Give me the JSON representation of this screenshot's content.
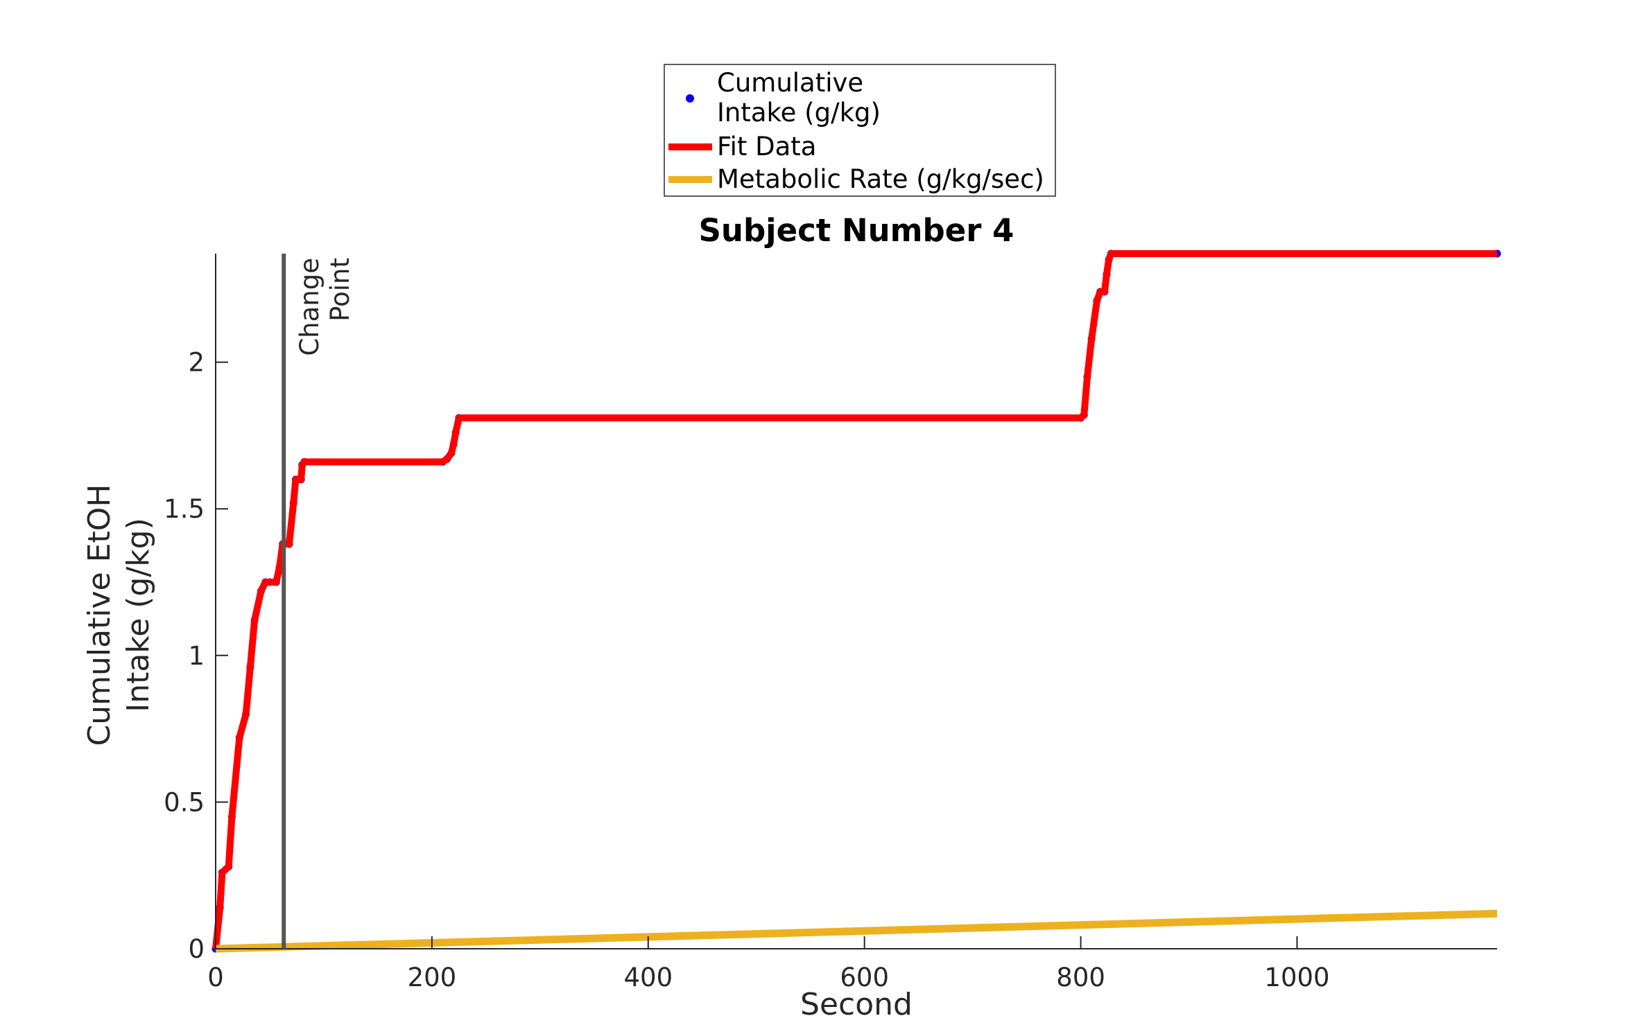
{
  "chart_data": {
    "type": "line",
    "title": "Subject Number 4",
    "xlabel": "Second",
    "ylabel_lines": [
      "Cumulative EtOH",
      "Intake (g/kg)"
    ],
    "xlim": [
      0,
      1185
    ],
    "ylim": [
      0,
      2.37
    ],
    "xticks": [
      0,
      200,
      400,
      600,
      800,
      1000
    ],
    "xtick_labels": [
      "0",
      "200",
      "400",
      "600",
      "800",
      "1000"
    ],
    "yticks": [
      0,
      0.5,
      1,
      1.5,
      2
    ],
    "ytick_labels": [
      "0",
      "0.5",
      "1",
      "1.5",
      "2"
    ],
    "grid": false,
    "legend_position": "top-center",
    "legend": [
      {
        "label_lines": [
          "Cumulative",
          "Intake (g/kg)"
        ],
        "marker": "dot",
        "color": "#0000ff"
      },
      {
        "label_lines": [
          "Fit Data"
        ],
        "marker": "line",
        "color": "#ff0000"
      },
      {
        "label_lines": [
          "Metabolic Rate (g/kg/sec)"
        ],
        "marker": "line",
        "color": "#edb120"
      }
    ],
    "change_point": {
      "x": 63,
      "label_lines": [
        "Change",
        "Point"
      ],
      "color": "#555555"
    },
    "series": [
      {
        "name": "Cumulative Intake (g/kg)",
        "style": "dots",
        "color": "#0000ff",
        "x": [
          0,
          1185
        ],
        "y": [
          0,
          2.37
        ]
      },
      {
        "name": "Fit Data",
        "style": "line",
        "color": "#ff0000",
        "x": [
          0,
          4,
          6,
          12,
          15,
          22,
          28,
          32,
          36,
          42,
          46,
          50,
          56,
          59,
          62,
          64,
          68,
          72,
          74,
          76,
          79,
          80,
          82,
          210,
          214,
          218,
          220,
          222,
          225,
          800,
          803,
          806,
          810,
          815,
          818,
          822,
          824,
          826,
          828,
          1185
        ],
        "y": [
          0,
          0.14,
          0.26,
          0.28,
          0.45,
          0.72,
          0.8,
          0.96,
          1.12,
          1.22,
          1.25,
          1.25,
          1.25,
          1.3,
          1.38,
          1.38,
          1.38,
          1.52,
          1.6,
          1.6,
          1.6,
          1.65,
          1.66,
          1.66,
          1.67,
          1.69,
          1.72,
          1.76,
          1.81,
          1.81,
          1.82,
          1.95,
          2.08,
          2.21,
          2.24,
          2.24,
          2.3,
          2.35,
          2.37,
          2.37
        ]
      },
      {
        "name": "Metabolic Rate (g/kg/sec)",
        "style": "line",
        "color": "#edb120",
        "x": [
          0,
          1185
        ],
        "y": [
          0,
          0.12
        ]
      }
    ]
  }
}
